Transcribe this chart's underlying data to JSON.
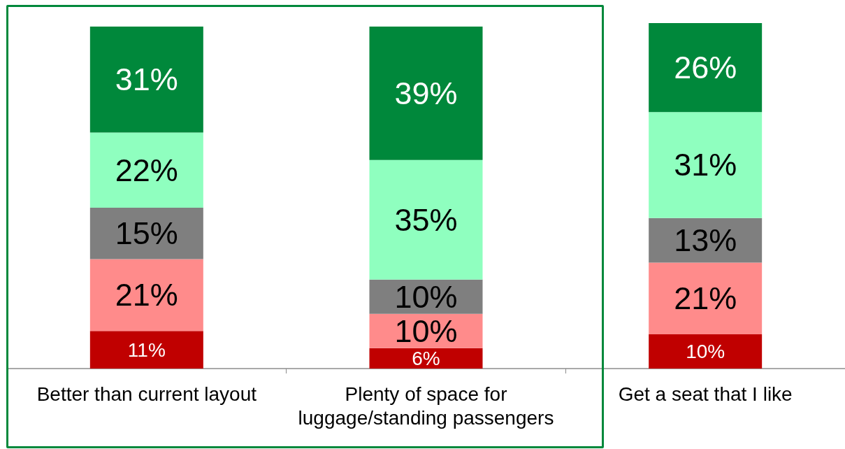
{
  "chart_data": {
    "type": "bar",
    "stacked": true,
    "categories": [
      "Better than current layout",
      "Plenty of space for luggage/standing passengers",
      "Get a seat that I like"
    ],
    "series": [
      {
        "color": "#c00000",
        "values": [
          11,
          6,
          10
        ],
        "value_labels": [
          "11%",
          "6%",
          "10%"
        ]
      },
      {
        "color": "#ff8b8b",
        "values": [
          21,
          10,
          21
        ],
        "value_labels": [
          "21%",
          "10%",
          "21%"
        ]
      },
      {
        "color": "#7f7f7f",
        "values": [
          15,
          10,
          13
        ],
        "value_labels": [
          "15%",
          "10%",
          "13%"
        ]
      },
      {
        "color": "#8fffbf",
        "values": [
          22,
          35,
          31
        ],
        "value_labels": [
          "22%",
          "35%",
          "31%"
        ]
      },
      {
        "color": "#00883b",
        "values": [
          31,
          39,
          26
        ],
        "value_labels": [
          "31%",
          "39%",
          "26%"
        ]
      }
    ],
    "ylim": [
      0,
      101
    ],
    "tick_labels": "x"
  }
}
